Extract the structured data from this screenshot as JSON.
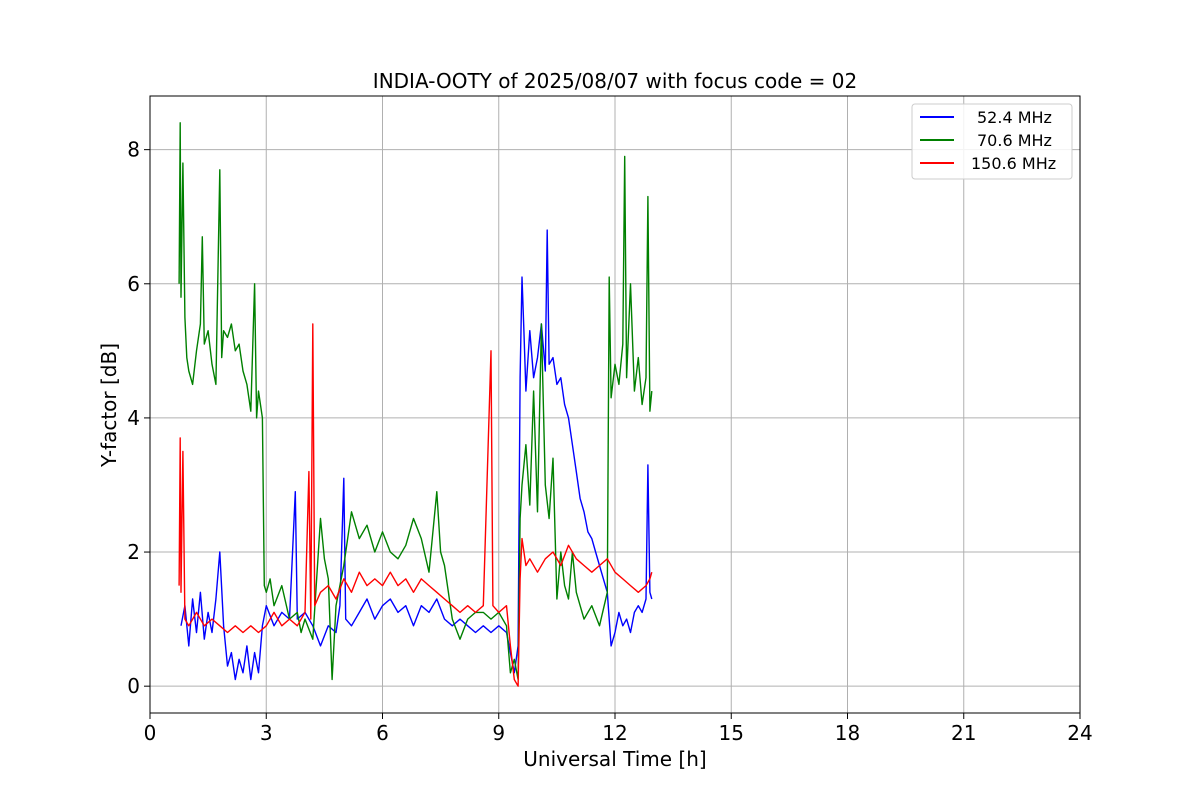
{
  "chart_data": {
    "type": "line",
    "title": "INDIA-OOTY of 2025/08/07 with focus code = 02",
    "xlabel": "Universal Time [h]",
    "ylabel": "Y-factor [dB]",
    "xlim": [
      0,
      24
    ],
    "ylim": [
      -0.4,
      8.8
    ],
    "xticks": [
      0,
      3,
      6,
      9,
      12,
      15,
      18,
      21,
      24
    ],
    "yticks": [
      0,
      2,
      4,
      6,
      8
    ],
    "xtick_labels": [
      "0",
      "3",
      "6",
      "9",
      "12",
      "15",
      "18",
      "21",
      "24"
    ],
    "ytick_labels": [
      "0",
      "2",
      "4",
      "6",
      "8"
    ],
    "grid": true,
    "legend_position": "top-right",
    "series": [
      {
        "name": "52.4 MHz",
        "color": "#0000ff",
        "points": [
          [
            0.8,
            0.9
          ],
          [
            0.9,
            1.2
          ],
          [
            1.0,
            0.6
          ],
          [
            1.1,
            1.3
          ],
          [
            1.2,
            0.8
          ],
          [
            1.3,
            1.4
          ],
          [
            1.4,
            0.7
          ],
          [
            1.5,
            1.1
          ],
          [
            1.6,
            0.8
          ],
          [
            1.7,
            1.3
          ],
          [
            1.8,
            2.0
          ],
          [
            1.9,
            0.9
          ],
          [
            2.0,
            0.3
          ],
          [
            2.1,
            0.5
          ],
          [
            2.2,
            0.1
          ],
          [
            2.3,
            0.4
          ],
          [
            2.4,
            0.2
          ],
          [
            2.5,
            0.6
          ],
          [
            2.6,
            0.1
          ],
          [
            2.7,
            0.5
          ],
          [
            2.8,
            0.2
          ],
          [
            2.9,
            0.9
          ],
          [
            3.0,
            1.2
          ],
          [
            3.2,
            0.9
          ],
          [
            3.4,
            1.1
          ],
          [
            3.6,
            1.0
          ],
          [
            3.75,
            2.9
          ],
          [
            3.8,
            1.0
          ],
          [
            4.0,
            1.1
          ],
          [
            4.2,
            0.9
          ],
          [
            4.4,
            0.6
          ],
          [
            4.6,
            0.9
          ],
          [
            4.8,
            0.8
          ],
          [
            4.9,
            1.2
          ],
          [
            5.0,
            3.1
          ],
          [
            5.05,
            1.0
          ],
          [
            5.2,
            0.9
          ],
          [
            5.4,
            1.1
          ],
          [
            5.6,
            1.3
          ],
          [
            5.8,
            1.0
          ],
          [
            6.0,
            1.2
          ],
          [
            6.2,
            1.3
          ],
          [
            6.4,
            1.1
          ],
          [
            6.6,
            1.2
          ],
          [
            6.8,
            0.9
          ],
          [
            7.0,
            1.2
          ],
          [
            7.2,
            1.1
          ],
          [
            7.4,
            1.3
          ],
          [
            7.6,
            1.0
          ],
          [
            7.8,
            0.9
          ],
          [
            8.0,
            1.0
          ],
          [
            8.2,
            0.9
          ],
          [
            8.4,
            0.8
          ],
          [
            8.6,
            0.9
          ],
          [
            8.8,
            0.8
          ],
          [
            9.0,
            0.9
          ],
          [
            9.2,
            0.8
          ],
          [
            9.3,
            0.5
          ],
          [
            9.4,
            0.2
          ],
          [
            9.5,
            0.6
          ],
          [
            9.55,
            4.6
          ],
          [
            9.6,
            6.1
          ],
          [
            9.65,
            5.3
          ],
          [
            9.7,
            4.4
          ],
          [
            9.8,
            5.3
          ],
          [
            9.9,
            4.6
          ],
          [
            10.0,
            4.9
          ],
          [
            10.1,
            5.4
          ],
          [
            10.2,
            4.7
          ],
          [
            10.25,
            6.8
          ],
          [
            10.3,
            4.8
          ],
          [
            10.4,
            4.9
          ],
          [
            10.5,
            4.5
          ],
          [
            10.6,
            4.6
          ],
          [
            10.7,
            4.2
          ],
          [
            10.8,
            4.0
          ],
          [
            10.9,
            3.6
          ],
          [
            11.0,
            3.2
          ],
          [
            11.1,
            2.8
          ],
          [
            11.2,
            2.6
          ],
          [
            11.3,
            2.3
          ],
          [
            11.4,
            2.2
          ],
          [
            11.5,
            2.0
          ],
          [
            11.6,
            1.8
          ],
          [
            11.7,
            1.6
          ],
          [
            11.8,
            1.4
          ],
          [
            11.9,
            0.6
          ],
          [
            12.0,
            0.8
          ],
          [
            12.1,
            1.1
          ],
          [
            12.2,
            0.9
          ],
          [
            12.3,
            1.0
          ],
          [
            12.4,
            0.8
          ],
          [
            12.5,
            1.1
          ],
          [
            12.6,
            1.2
          ],
          [
            12.7,
            1.1
          ],
          [
            12.8,
            1.3
          ],
          [
            12.85,
            3.3
          ],
          [
            12.9,
            1.4
          ],
          [
            12.95,
            1.3
          ]
        ]
      },
      {
        "name": "70.6 MHz",
        "color": "#008000",
        "points": [
          [
            0.75,
            6.0
          ],
          [
            0.78,
            8.4
          ],
          [
            0.8,
            5.8
          ],
          [
            0.85,
            7.8
          ],
          [
            0.9,
            5.5
          ],
          [
            0.95,
            4.9
          ],
          [
            1.0,
            4.7
          ],
          [
            1.1,
            4.5
          ],
          [
            1.2,
            5.0
          ],
          [
            1.3,
            5.4
          ],
          [
            1.35,
            6.7
          ],
          [
            1.4,
            5.1
          ],
          [
            1.5,
            5.3
          ],
          [
            1.6,
            4.8
          ],
          [
            1.7,
            4.5
          ],
          [
            1.8,
            7.7
          ],
          [
            1.85,
            4.9
          ],
          [
            1.9,
            5.3
          ],
          [
            2.0,
            5.2
          ],
          [
            2.1,
            5.4
          ],
          [
            2.2,
            5.0
          ],
          [
            2.3,
            5.1
          ],
          [
            2.4,
            4.7
          ],
          [
            2.5,
            4.5
          ],
          [
            2.6,
            4.1
          ],
          [
            2.7,
            6.0
          ],
          [
            2.75,
            4.0
          ],
          [
            2.8,
            4.4
          ],
          [
            2.9,
            4.0
          ],
          [
            2.95,
            1.5
          ],
          [
            3.0,
            1.4
          ],
          [
            3.1,
            1.6
          ],
          [
            3.2,
            1.2
          ],
          [
            3.4,
            1.5
          ],
          [
            3.6,
            1.0
          ],
          [
            3.8,
            1.1
          ],
          [
            3.9,
            0.8
          ],
          [
            4.0,
            1.0
          ],
          [
            4.2,
            0.7
          ],
          [
            4.4,
            2.5
          ],
          [
            4.5,
            1.9
          ],
          [
            4.6,
            1.6
          ],
          [
            4.7,
            0.1
          ],
          [
            4.8,
            1.2
          ],
          [
            5.0,
            1.8
          ],
          [
            5.2,
            2.6
          ],
          [
            5.4,
            2.2
          ],
          [
            5.6,
            2.4
          ],
          [
            5.8,
            2.0
          ],
          [
            6.0,
            2.3
          ],
          [
            6.2,
            2.0
          ],
          [
            6.4,
            1.9
          ],
          [
            6.6,
            2.1
          ],
          [
            6.8,
            2.5
          ],
          [
            7.0,
            2.2
          ],
          [
            7.2,
            1.7
          ],
          [
            7.4,
            2.9
          ],
          [
            7.5,
            2.0
          ],
          [
            7.6,
            1.8
          ],
          [
            7.8,
            1.0
          ],
          [
            8.0,
            0.7
          ],
          [
            8.2,
            1.0
          ],
          [
            8.4,
            1.1
          ],
          [
            8.6,
            1.1
          ],
          [
            8.8,
            1.0
          ],
          [
            9.0,
            1.1
          ],
          [
            9.2,
            0.9
          ],
          [
            9.3,
            0.2
          ],
          [
            9.4,
            0.4
          ],
          [
            9.5,
            0.1
          ],
          [
            9.55,
            2.5
          ],
          [
            9.6,
            3.0
          ],
          [
            9.7,
            3.6
          ],
          [
            9.8,
            2.7
          ],
          [
            9.9,
            4.4
          ],
          [
            10.0,
            2.6
          ],
          [
            10.1,
            5.4
          ],
          [
            10.2,
            3.0
          ],
          [
            10.3,
            2.5
          ],
          [
            10.4,
            3.4
          ],
          [
            10.5,
            1.3
          ],
          [
            10.6,
            2.0
          ],
          [
            10.7,
            1.5
          ],
          [
            10.8,
            1.3
          ],
          [
            10.9,
            2.0
          ],
          [
            11.0,
            1.4
          ],
          [
            11.2,
            1.0
          ],
          [
            11.4,
            1.2
          ],
          [
            11.6,
            0.9
          ],
          [
            11.8,
            1.4
          ],
          [
            11.85,
            6.1
          ],
          [
            11.9,
            4.3
          ],
          [
            12.0,
            4.8
          ],
          [
            12.1,
            4.5
          ],
          [
            12.2,
            5.1
          ],
          [
            12.25,
            7.9
          ],
          [
            12.3,
            4.6
          ],
          [
            12.4,
            6.0
          ],
          [
            12.5,
            4.4
          ],
          [
            12.6,
            4.9
          ],
          [
            12.7,
            4.2
          ],
          [
            12.8,
            4.6
          ],
          [
            12.85,
            7.3
          ],
          [
            12.9,
            4.1
          ],
          [
            12.95,
            4.4
          ]
        ]
      },
      {
        "name": "150.6 MHz",
        "color": "#ff0000",
        "points": [
          [
            0.75,
            1.5
          ],
          [
            0.78,
            3.7
          ],
          [
            0.8,
            1.4
          ],
          [
            0.85,
            3.5
          ],
          [
            0.9,
            1.0
          ],
          [
            1.0,
            0.9
          ],
          [
            1.2,
            1.1
          ],
          [
            1.4,
            0.9
          ],
          [
            1.6,
            1.0
          ],
          [
            1.8,
            0.9
          ],
          [
            2.0,
            0.8
          ],
          [
            2.2,
            0.9
          ],
          [
            2.4,
            0.8
          ],
          [
            2.6,
            0.9
          ],
          [
            2.8,
            0.8
          ],
          [
            3.0,
            0.9
          ],
          [
            3.2,
            1.1
          ],
          [
            3.4,
            0.9
          ],
          [
            3.6,
            1.0
          ],
          [
            3.8,
            0.9
          ],
          [
            4.0,
            1.1
          ],
          [
            4.1,
            3.2
          ],
          [
            4.15,
            1.0
          ],
          [
            4.2,
            5.4
          ],
          [
            4.25,
            1.2
          ],
          [
            4.4,
            1.4
          ],
          [
            4.6,
            1.5
          ],
          [
            4.8,
            1.3
          ],
          [
            5.0,
            1.6
          ],
          [
            5.2,
            1.4
          ],
          [
            5.4,
            1.7
          ],
          [
            5.6,
            1.5
          ],
          [
            5.8,
            1.6
          ],
          [
            6.0,
            1.5
          ],
          [
            6.2,
            1.7
          ],
          [
            6.4,
            1.5
          ],
          [
            6.6,
            1.6
          ],
          [
            6.8,
            1.4
          ],
          [
            7.0,
            1.6
          ],
          [
            7.2,
            1.5
          ],
          [
            7.4,
            1.4
          ],
          [
            7.6,
            1.3
          ],
          [
            7.8,
            1.2
          ],
          [
            8.0,
            1.1
          ],
          [
            8.2,
            1.2
          ],
          [
            8.4,
            1.1
          ],
          [
            8.6,
            1.2
          ],
          [
            8.8,
            5.0
          ],
          [
            8.85,
            1.2
          ],
          [
            9.0,
            1.1
          ],
          [
            9.2,
            1.2
          ],
          [
            9.3,
            0.6
          ],
          [
            9.4,
            0.1
          ],
          [
            9.5,
            0.0
          ],
          [
            9.55,
            1.6
          ],
          [
            9.6,
            2.2
          ],
          [
            9.7,
            1.8
          ],
          [
            9.8,
            1.9
          ],
          [
            10.0,
            1.7
          ],
          [
            10.2,
            1.9
          ],
          [
            10.4,
            2.0
          ],
          [
            10.6,
            1.8
          ],
          [
            10.8,
            2.1
          ],
          [
            11.0,
            1.9
          ],
          [
            11.2,
            1.8
          ],
          [
            11.4,
            1.7
          ],
          [
            11.6,
            1.8
          ],
          [
            11.8,
            1.9
          ],
          [
            12.0,
            1.7
          ],
          [
            12.2,
            1.6
          ],
          [
            12.4,
            1.5
          ],
          [
            12.6,
            1.4
          ],
          [
            12.8,
            1.5
          ],
          [
            12.9,
            1.6
          ],
          [
            12.95,
            1.7
          ]
        ]
      }
    ]
  }
}
